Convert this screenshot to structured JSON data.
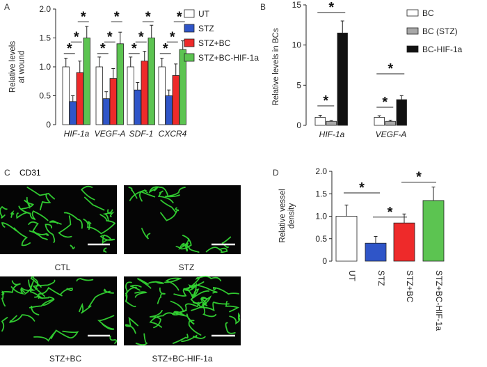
{
  "colors": {
    "ut": "#ffffff",
    "stz": "#2f55c8",
    "stz_bc": "#ee2a2a",
    "stz_bc_hif": "#5cc451",
    "bc": "#ffffff",
    "bc_stz": "#a8a8a8",
    "bc_hif": "#111111",
    "vessel": "#33d433",
    "micro_bg": "#050505"
  },
  "panels": {
    "a": "A",
    "b": "B",
    "c": "C",
    "d": "D"
  },
  "microscopy": {
    "stain_label": "CD31",
    "images": [
      {
        "label": "CTL"
      },
      {
        "label": "STZ"
      },
      {
        "label": "STZ+BC"
      },
      {
        "label": "STZ+BC-HIF-1a"
      }
    ]
  },
  "chart_data": [
    {
      "type": "bar",
      "panel": "A",
      "ylabel": "Relative levels\nat wound",
      "ylim": [
        0,
        2.0
      ],
      "yticks": [
        "0",
        "0.5",
        "1.0",
        "1.5",
        "2.0"
      ],
      "categories": [
        "HIF-1a",
        "VEGF-A",
        "SDF-1",
        "CXCR4"
      ],
      "series": [
        {
          "name": "UT",
          "color_key": "ut",
          "values": [
            1.0,
            1.0,
            1.0,
            1.0
          ],
          "errors": [
            0.15,
            0.17,
            0.17,
            0.15
          ]
        },
        {
          "name": "STZ",
          "color_key": "stz",
          "values": [
            0.4,
            0.45,
            0.6,
            0.5
          ],
          "errors": [
            0.1,
            0.12,
            0.13,
            0.1
          ]
        },
        {
          "name": "STZ+BC",
          "color_key": "stz_bc",
          "values": [
            0.9,
            0.8,
            1.1,
            0.85
          ],
          "errors": [
            0.2,
            0.17,
            0.17,
            0.2
          ]
        },
        {
          "name": "STZ+BC-HIF-1a",
          "color_key": "stz_bc_hif",
          "values": [
            1.5,
            1.4,
            1.5,
            1.3
          ],
          "errors": [
            0.2,
            0.2,
            0.22,
            0.15
          ]
        }
      ],
      "significance": "*",
      "legend_position": "right"
    },
    {
      "type": "bar",
      "panel": "B",
      "ylabel": "Relative levels in BCs",
      "ylim": [
        0,
        15
      ],
      "yticks": [
        "0",
        "5",
        "10",
        "15"
      ],
      "categories": [
        "HIF-1a",
        "VEGF-A"
      ],
      "series": [
        {
          "name": "BC",
          "color_key": "bc",
          "values": [
            1.0,
            1.0
          ],
          "errors": [
            0.25,
            0.2
          ]
        },
        {
          "name": "BC (STZ)",
          "color_key": "bc_stz",
          "values": [
            0.5,
            0.5
          ],
          "errors": [
            0.1,
            0.15
          ]
        },
        {
          "name": "BC-HIF-1a",
          "color_key": "bc_hif",
          "values": [
            11.5,
            3.2
          ],
          "errors": [
            1.5,
            0.5
          ]
        }
      ],
      "significance": "*",
      "legend_position": "right"
    },
    {
      "type": "bar",
      "panel": "D",
      "ylabel": "Relative vessel\ndensity",
      "ylim": [
        0,
        2.0
      ],
      "yticks": [
        "0",
        "0.5",
        "1.0",
        "1.5",
        "2.0"
      ],
      "categories": [
        "UT",
        "STZ",
        "STZ+BC",
        "STZ+BC-HIF-1a"
      ],
      "values": [
        1.0,
        0.4,
        0.85,
        1.35
      ],
      "errors": [
        0.25,
        0.15,
        0.2,
        0.3
      ],
      "color_keys": [
        "ut",
        "stz",
        "stz_bc",
        "stz_bc_hif"
      ],
      "significance": "*"
    }
  ]
}
